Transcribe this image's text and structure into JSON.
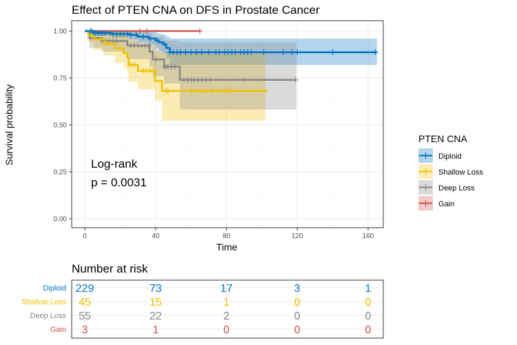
{
  "chart_data": {
    "type": "line",
    "title": "Effect of PTEN CNA on DFS in Prostate Cancer",
    "xlabel": "Time",
    "ylabel": "Survival probability",
    "xlim": [
      0,
      165
    ],
    "ylim": [
      0,
      1
    ],
    "xticks": [
      0,
      40,
      80,
      120,
      160
    ],
    "yticks": [
      0,
      0.25,
      0.5,
      0.75,
      1
    ],
    "ytick_labels": [
      "0.00",
      "0.25",
      "0.50",
      "0.75",
      "1.00"
    ],
    "grid": true,
    "annotation": [
      "Log-rank",
      "p = 0.0031"
    ],
    "legend": {
      "title": "PTEN CNA",
      "placement": "right"
    },
    "series": [
      {
        "name": "Diploid",
        "color": "#0073C2",
        "end": 165,
        "time": [
          0,
          5,
          15,
          25,
          30,
          36,
          40,
          42,
          44,
          46,
          48
        ],
        "surv": [
          1,
          0.99,
          0.985,
          0.98,
          0.97,
          0.96,
          0.95,
          0.94,
          0.93,
          0.91,
          0.887
        ],
        "lower": [
          1,
          0.975,
          0.965,
          0.955,
          0.94,
          0.925,
          0.91,
          0.895,
          0.88,
          0.855,
          0.82
        ],
        "upper": [
          1,
          1,
          1,
          1,
          1,
          1,
          0.99,
          0.985,
          0.98,
          0.97,
          0.96
        ],
        "censor": [
          3,
          4,
          5,
          6,
          7,
          8,
          9,
          10,
          11,
          12,
          14,
          16,
          18,
          20,
          22,
          24,
          26,
          29,
          33,
          37,
          41,
          45,
          48,
          50,
          52,
          54,
          57,
          60,
          63,
          66,
          70,
          74,
          76,
          79,
          81,
          83,
          85,
          88,
          90,
          92,
          94,
          101,
          112,
          117,
          120,
          140,
          164
        ]
      },
      {
        "name": "Shallow Loss",
        "color": "#EFC000",
        "end": 102,
        "time": [
          0,
          2,
          5,
          11,
          17,
          22,
          24,
          24.8,
          30,
          39.7,
          43.6
        ],
        "surv": [
          1,
          0.978,
          0.956,
          0.933,
          0.908,
          0.883,
          0.859,
          0.82,
          0.788,
          0.734,
          0.681
        ],
        "lower": [
          1,
          0.94,
          0.9,
          0.87,
          0.83,
          0.8,
          0.77,
          0.73,
          0.69,
          0.63,
          0.522
        ],
        "upper": [
          1,
          1,
          1,
          1,
          1,
          0.98,
          0.97,
          0.95,
          0.92,
          0.89,
          0.88
        ],
        "censor": [
          4,
          12,
          14,
          20,
          26,
          28,
          33,
          35,
          37,
          39,
          46,
          47,
          60,
          62,
          66,
          68,
          72,
          75,
          79,
          82,
          102
        ]
      },
      {
        "name": "Deep Loss",
        "color": "#868686",
        "end": 119.5,
        "time": [
          0,
          2.7,
          9.8,
          24,
          36.5,
          38.4,
          44.8,
          53.7
        ],
        "surv": [
          1,
          0.963,
          0.947,
          0.923,
          0.89,
          0.849,
          0.81,
          0.74
        ],
        "lower": [
          1,
          0.91,
          0.89,
          0.85,
          0.81,
          0.76,
          0.72,
          0.582
        ],
        "upper": [
          1,
          1,
          1,
          1,
          0.99,
          0.97,
          0.95,
          0.94
        ],
        "censor": [
          3,
          10,
          12,
          14,
          16,
          18,
          26,
          28,
          30,
          32,
          34,
          36,
          40,
          45,
          46,
          47,
          49,
          51,
          56,
          58,
          60,
          62,
          64,
          66,
          68,
          71,
          90,
          119
        ]
      },
      {
        "name": "Gain",
        "color": "#CD534C",
        "end": 65,
        "time": [
          0
        ],
        "surv": [
          1
        ],
        "lower": [
          1
        ],
        "upper": [
          1
        ],
        "censor": [
          31,
          35,
          65
        ]
      }
    ],
    "risk_table": {
      "title": "Number at risk",
      "times": [
        0,
        40,
        80,
        120,
        160
      ],
      "rows": [
        {
          "name": "Diploid",
          "values": [
            "229",
            "73",
            "17",
            "3",
            "1"
          ]
        },
        {
          "name": "Shallow Loss",
          "values": [
            "45",
            "15",
            "1",
            "0",
            "0"
          ]
        },
        {
          "name": "Deep Loss",
          "values": [
            "55",
            "22",
            "2",
            "0",
            "0"
          ]
        },
        {
          "name": "Gain",
          "values": [
            "3",
            "1",
            "0",
            "0",
            "0"
          ]
        }
      ]
    }
  }
}
